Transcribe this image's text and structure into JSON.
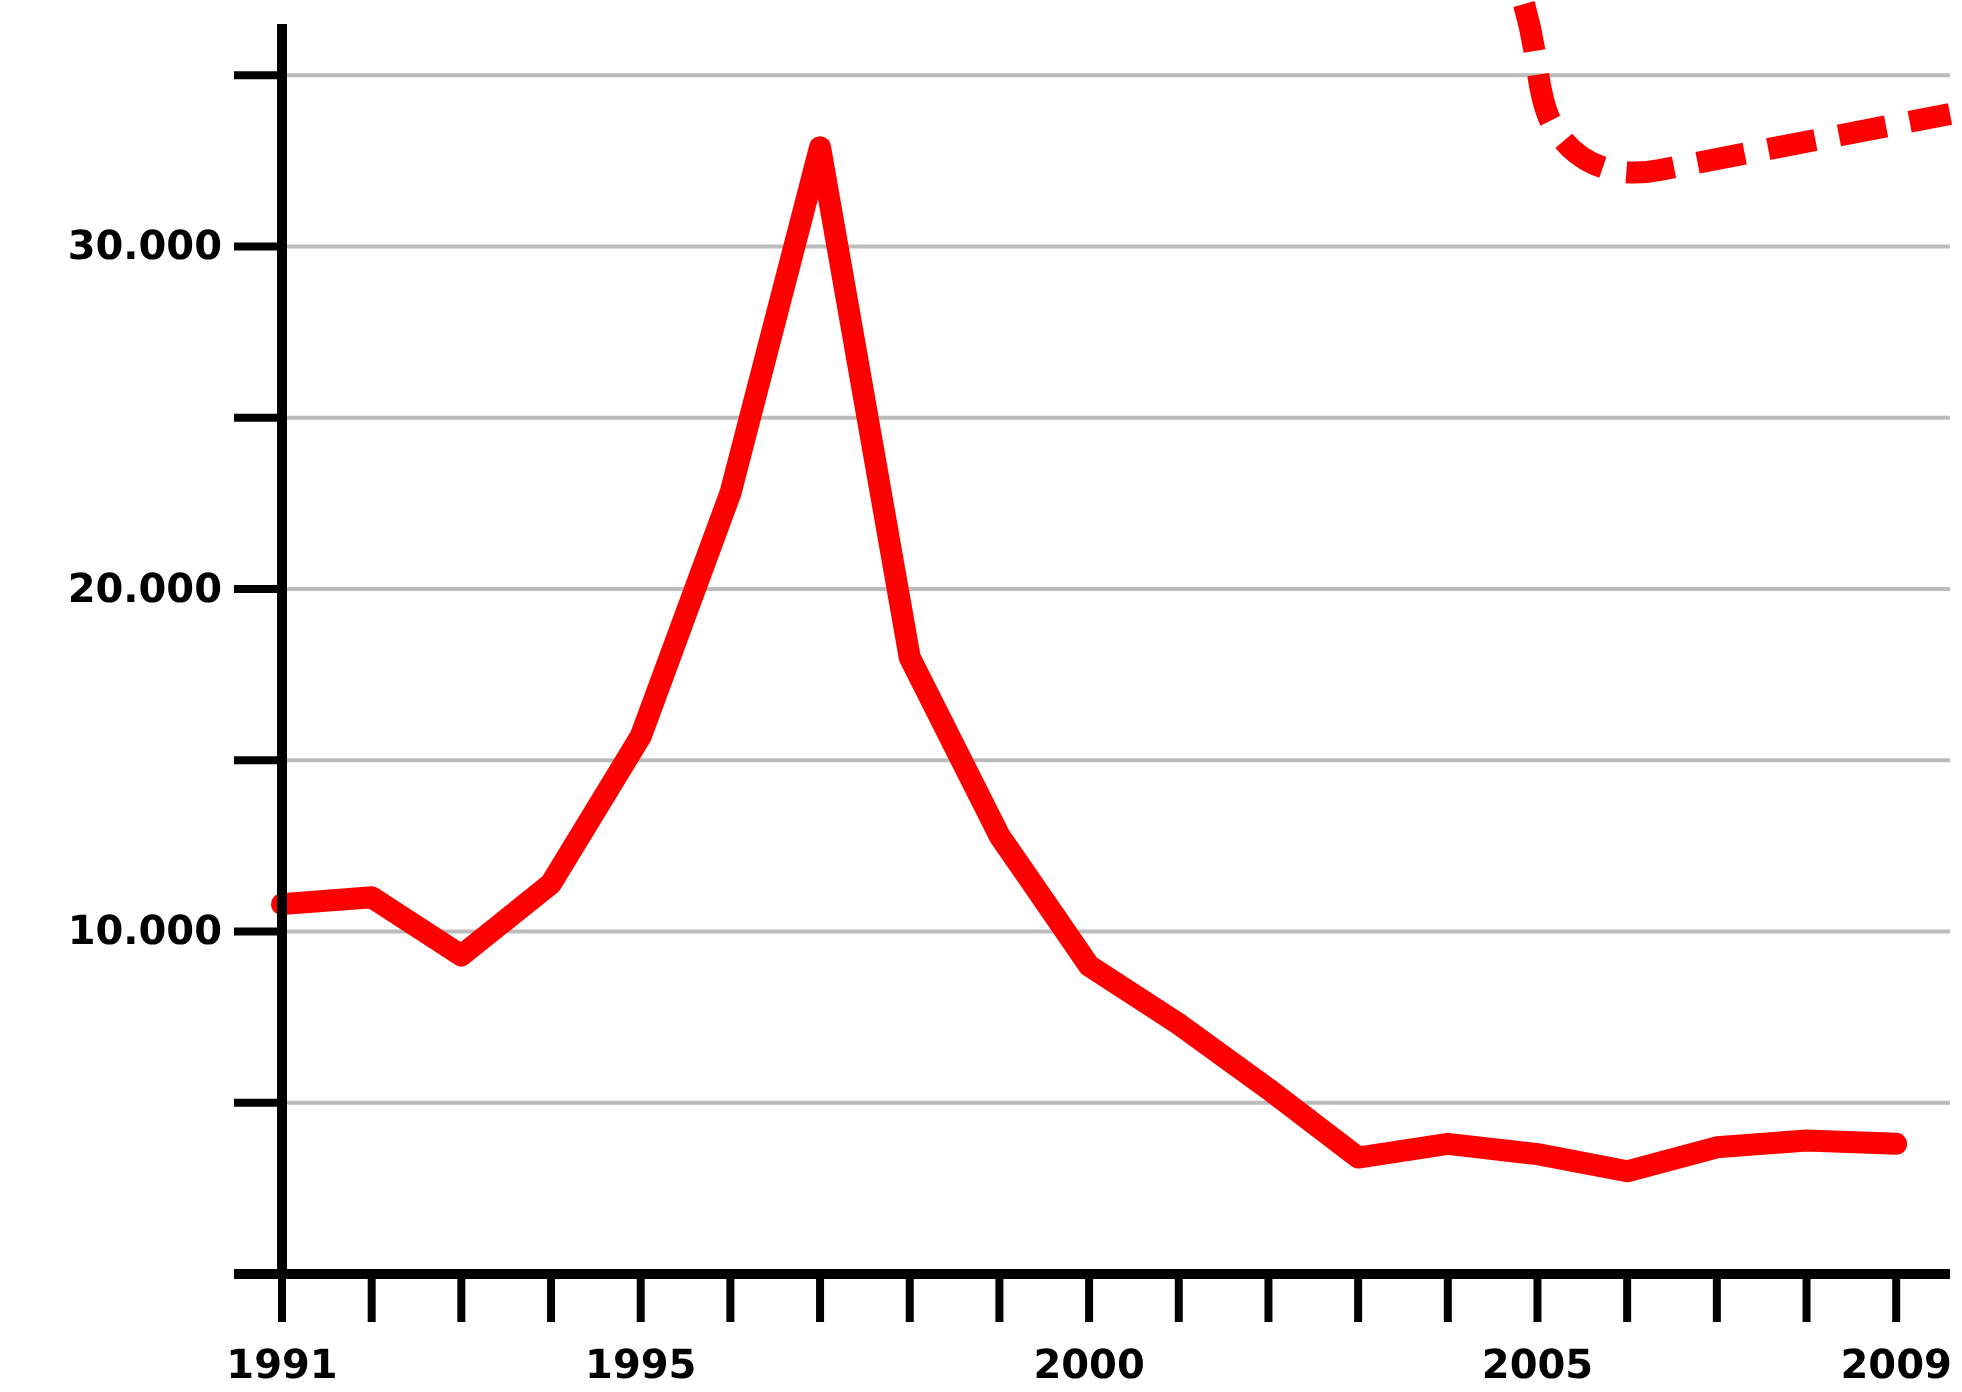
{
  "chart_data": {
    "type": "line",
    "x": [
      1991,
      1992,
      1993,
      1994,
      1995,
      1996,
      1997,
      1998,
      1999,
      2000,
      2001,
      2002,
      2003,
      2004,
      2005,
      2006,
      2007,
      2008,
      2009
    ],
    "series": [
      {
        "color": "#ff0000",
        "values": [
          10800,
          11000,
          9300,
          11400,
          15700,
          22800,
          32900,
          18000,
          12800,
          9000,
          7300,
          5400,
          3400,
          3800,
          3500,
          3000,
          3700,
          3900,
          3800
        ]
      }
    ],
    "xlim": [
      1991,
      2009.6
    ],
    "xticks": [
      1991,
      1995,
      2000,
      2005,
      2009
    ],
    "ylim": [
      0,
      36500
    ],
    "yticks": [
      {
        "value": 5000,
        "label": null
      },
      {
        "value": 10000,
        "label": "10.000"
      },
      {
        "value": 15000,
        "label": null
      },
      {
        "value": 20000,
        "label": "20.000"
      },
      {
        "value": 25000,
        "label": null
      },
      {
        "value": 30000,
        "label": "30.000"
      },
      {
        "value": 35000,
        "label": null
      }
    ],
    "grid": "y",
    "marker": "none",
    "line_style": "solid"
  }
}
